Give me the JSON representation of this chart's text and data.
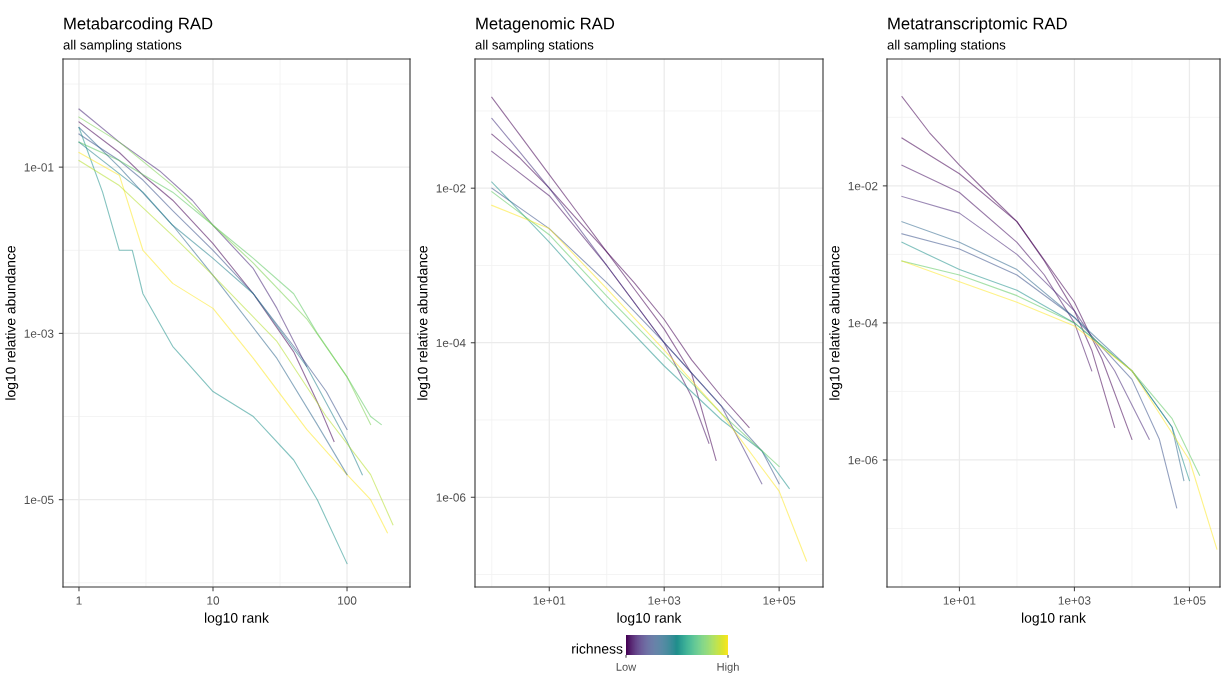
{
  "chart_data": [
    {
      "type": "line",
      "title": "Metabarcoding RAD",
      "subtitle": "all sampling stations",
      "xlabel": "log10 rank",
      "ylabel": "log10 relative abundance",
      "log": "xy",
      "grid": true,
      "line_style": "solid",
      "xlim": [
        0.76,
        295
      ],
      "ylim": [
        8.9e-07,
        2.0
      ],
      "xticks": [
        1,
        10,
        100
      ],
      "yticks": [
        {
          "value": 0.1,
          "label": "1e-01"
        },
        {
          "value": 0.001,
          "label": "1e-03"
        },
        {
          "value": 1e-05,
          "label": "1e-05"
        }
      ],
      "series": [
        {
          "color": "#440154",
          "x": [
            1,
            2,
            3,
            5,
            10,
            20,
            40,
            60,
            80
          ],
          "values": [
            0.35,
            0.15,
            0.08,
            0.04,
            0.012,
            0.003,
            0.0006,
            0.00015,
            5e-05
          ]
        },
        {
          "color": "#482878",
          "x": [
            1,
            2,
            4,
            7,
            10,
            20,
            30,
            50
          ],
          "values": [
            0.5,
            0.2,
            0.09,
            0.04,
            0.02,
            0.006,
            0.002,
            0.0004
          ]
        },
        {
          "color": "#3b528b",
          "x": [
            1,
            2,
            3,
            5,
            10,
            20,
            40,
            70,
            100
          ],
          "values": [
            0.25,
            0.12,
            0.07,
            0.03,
            0.01,
            0.003,
            0.0007,
            0.0002,
            7e-05
          ]
        },
        {
          "color": "#21918c",
          "x": [
            1,
            1.5,
            2,
            2.5,
            3,
            5,
            10,
            20,
            40,
            60,
            100
          ],
          "values": [
            0.3,
            0.05,
            0.01,
            0.01,
            0.003,
            0.0007,
            0.0002,
            0.0001,
            3e-05,
            1e-05,
            1.7e-06
          ]
        },
        {
          "color": "#5ec962",
          "x": [
            1,
            2,
            5,
            10,
            20,
            40,
            60,
            100,
            150,
            180
          ],
          "values": [
            0.2,
            0.12,
            0.05,
            0.02,
            0.008,
            0.003,
            0.001,
            0.0003,
            0.0001,
            8e-05
          ]
        },
        {
          "color": "#fde725",
          "x": [
            1,
            2,
            3,
            5,
            10,
            20,
            50,
            100,
            150,
            200
          ],
          "values": [
            0.15,
            0.08,
            0.01,
            0.004,
            0.002,
            0.0005,
            7e-05,
            2e-05,
            1e-05,
            4e-06
          ]
        },
        {
          "color": "#31688e",
          "x": [
            1,
            2,
            5,
            10,
            30,
            60,
            100
          ],
          "values": [
            0.3,
            0.1,
            0.02,
            0.005,
            0.0005,
            8e-05,
            2e-05
          ]
        },
        {
          "color": "#7ad151",
          "x": [
            1,
            2,
            5,
            10,
            20,
            50,
            100,
            150
          ],
          "values": [
            0.4,
            0.2,
            0.06,
            0.02,
            0.007,
            0.0015,
            0.0003,
            8e-05
          ]
        },
        {
          "color": "#26828e",
          "x": [
            1,
            3,
            5,
            10,
            20,
            50,
            100,
            130
          ],
          "values": [
            0.2,
            0.05,
            0.02,
            0.008,
            0.003,
            0.0004,
            5e-05,
            2e-05
          ]
        },
        {
          "color": "#b5de2b",
          "x": [
            1,
            2,
            5,
            10,
            30,
            70,
            150,
            220
          ],
          "values": [
            0.12,
            0.06,
            0.015,
            0.005,
            0.0008,
            0.0001,
            2e-05,
            5e-06
          ]
        }
      ]
    },
    {
      "type": "line",
      "title": "Metagenomic RAD",
      "subtitle": "all sampling stations",
      "xlabel": "log10 rank",
      "ylabel": "log10 relative abundance",
      "log": "xy",
      "grid": true,
      "line_style": "solid",
      "xlim": [
        0.51,
        580000
      ],
      "ylim": [
        6.9e-08,
        0.47
      ],
      "xticks": [
        {
          "value": 10,
          "label": "1e+01"
        },
        {
          "value": 1000,
          "label": "1e+03"
        },
        {
          "value": 100000,
          "label": "1e+05"
        }
      ],
      "yticks": [
        {
          "value": 0.01,
          "label": "1e-02"
        },
        {
          "value": 0.0001,
          "label": "1e-04"
        },
        {
          "value": 1e-06,
          "label": "1e-06"
        }
      ],
      "clabel": "richness",
      "clim": [
        0,
        1
      ],
      "cticks": [
        {
          "value": 0,
          "label": "Low"
        },
        {
          "value": 1,
          "label": "High"
        }
      ],
      "series": [
        {
          "color": "#440154",
          "x": [
            1,
            3,
            10,
            30,
            100,
            300,
            1000,
            3000,
            8000
          ],
          "values": [
            0.15,
            0.05,
            0.015,
            0.005,
            0.0015,
            0.0005,
            0.00015,
            4e-05,
            3e-06
          ]
        },
        {
          "color": "#440154",
          "x": [
            1,
            3,
            10,
            30,
            100,
            300,
            1000,
            3000,
            10000,
            30000
          ],
          "values": [
            0.05,
            0.025,
            0.01,
            0.004,
            0.0015,
            0.0006,
            0.0002,
            6e-05,
            2e-05,
            8e-06
          ]
        },
        {
          "color": "#471063",
          "x": [
            1,
            10,
            100,
            1000,
            3000,
            6000
          ],
          "values": [
            0.03,
            0.008,
            0.001,
            0.0001,
            2e-05,
            5e-06
          ]
        },
        {
          "color": "#46327e",
          "x": [
            1,
            3,
            10,
            100,
            1000,
            10000,
            50000
          ],
          "values": [
            0.08,
            0.03,
            0.01,
            0.001,
            0.0001,
            1.5e-05,
            1.5e-06
          ]
        },
        {
          "color": "#3b528b",
          "x": [
            1,
            10,
            100,
            1000,
            10000,
            50000,
            100000
          ],
          "values": [
            0.01,
            0.003,
            0.0006,
            0.0001,
            1.5e-05,
            4e-06,
            1.5e-06
          ]
        },
        {
          "color": "#21918c",
          "x": [
            1,
            10,
            100,
            1000,
            10000,
            50000,
            150000
          ],
          "values": [
            0.012,
            0.002,
            0.0003,
            5e-05,
            1e-05,
            4e-06,
            1.3e-06
          ]
        },
        {
          "color": "#5ec962",
          "x": [
            1,
            10,
            100,
            1000,
            10000,
            100000
          ],
          "values": [
            0.009,
            0.0025,
            0.0004,
            7e-05,
            1.2e-05,
            2.5e-06
          ]
        },
        {
          "color": "#fde725",
          "x": [
            1,
            10,
            100,
            1000,
            10000,
            100000,
            300000
          ],
          "values": [
            0.006,
            0.003,
            0.0005,
            8e-05,
            1.2e-05,
            1.2e-06,
            1.5e-07
          ]
        }
      ]
    },
    {
      "type": "line",
      "title": "Metatranscriptomic RAD",
      "subtitle": "all sampling stations",
      "xlabel": "log10 rank",
      "ylabel": "log10 relative abundance",
      "log": "xy",
      "grid": true,
      "line_style": "solid",
      "xlim": [
        0.55,
        340000
      ],
      "ylim": [
        1.4e-08,
        0.71
      ],
      "xticks": [
        {
          "value": 10,
          "label": "1e+01"
        },
        {
          "value": 1000,
          "label": "1e+03"
        },
        {
          "value": 100000,
          "label": "1e+05"
        }
      ],
      "yticks": [
        {
          "value": 0.01,
          "label": "1e-02"
        },
        {
          "value": 0.0001,
          "label": "1e-04"
        },
        {
          "value": 1e-06,
          "label": "1e-06"
        }
      ],
      "series": [
        {
          "color": "#440154",
          "x": [
            1,
            3,
            10,
            30,
            100,
            300,
            1000,
            2000,
            5000
          ],
          "values": [
            0.2,
            0.06,
            0.02,
            0.008,
            0.003,
            0.0008,
            0.00015,
            4e-05,
            3e-06
          ]
        },
        {
          "color": "#440154",
          "x": [
            1,
            10,
            100,
            1000,
            3000,
            10000
          ],
          "values": [
            0.05,
            0.015,
            0.003,
            0.0002,
            3e-05,
            2e-06
          ]
        },
        {
          "color": "#471063",
          "x": [
            1,
            10,
            100,
            300,
            1000,
            2000
          ],
          "values": [
            0.02,
            0.008,
            0.0015,
            0.0005,
            0.0001,
            2e-05
          ]
        },
        {
          "color": "#482878",
          "x": [
            1,
            10,
            100,
            1000,
            5000,
            20000
          ],
          "values": [
            0.007,
            0.004,
            0.001,
            0.00015,
            2e-05,
            2e-06
          ]
        },
        {
          "color": "#3b528b",
          "x": [
            1,
            10,
            100,
            1000,
            10000,
            30000,
            60000
          ],
          "values": [
            0.002,
            0.0012,
            0.0005,
            0.00012,
            1.5e-05,
            2e-06,
            2e-07
          ]
        },
        {
          "color": "#31688e",
          "x": [
            1,
            10,
            100,
            1000,
            10000,
            50000,
            80000
          ],
          "values": [
            0.003,
            0.0015,
            0.0006,
            0.00012,
            2e-05,
            3e-06,
            5e-07
          ]
        },
        {
          "color": "#21918c",
          "x": [
            1,
            10,
            100,
            1000,
            10000,
            50000,
            100000
          ],
          "values": [
            0.0015,
            0.0006,
            0.0003,
            0.0001,
            2e-05,
            3e-06,
            5e-07
          ]
        },
        {
          "color": "#5ec962",
          "x": [
            1,
            10,
            100,
            1000,
            10000,
            50000,
            150000
          ],
          "values": [
            0.0008,
            0.0005,
            0.00025,
            0.0001,
            2e-05,
            4e-06,
            6e-07
          ]
        },
        {
          "color": "#fde725",
          "x": [
            1,
            10,
            100,
            1000,
            10000,
            100000,
            300000
          ],
          "values": [
            0.0008,
            0.0004,
            0.0002,
            9e-05,
            2e-05,
            1e-06,
            5e-08
          ]
        }
      ]
    }
  ]
}
